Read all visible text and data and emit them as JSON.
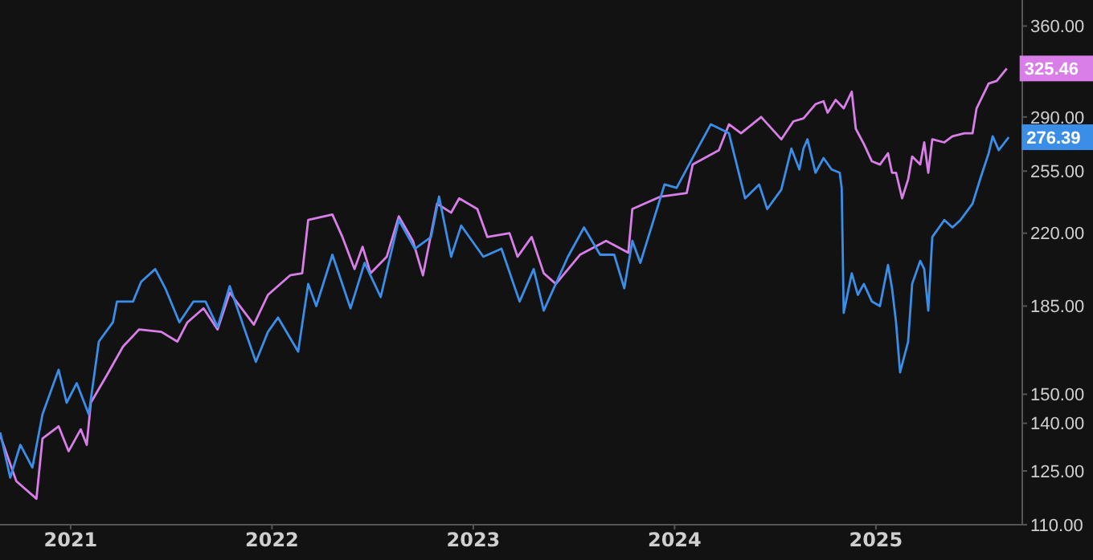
{
  "chart_data": {
    "type": "line",
    "log": true,
    "marker": "none",
    "xlim": [
      2020.649,
      2025.727
    ],
    "xticks": [
      2021,
      2022,
      2023,
      2024,
      2025
    ],
    "ylim": [
      110,
      383
    ],
    "yticks": [
      {
        "value": 110,
        "label": "110.00"
      },
      {
        "value": 125,
        "label": "125.00"
      },
      {
        "value": 140,
        "label": "140.00"
      },
      {
        "value": 150,
        "label": "150.00"
      },
      {
        "value": 185,
        "label": "185.00"
      },
      {
        "value": 220,
        "label": "220.00"
      },
      {
        "value": 255,
        "label": "255.00"
      },
      {
        "value": 290,
        "label": "290.00"
      },
      {
        "value": 360,
        "label": "360.00"
      }
    ],
    "series": [
      {
        "color": "#d97ee8",
        "x": [
          2020.65,
          2020.73,
          2020.83,
          2020.86,
          2020.94,
          2020.99,
          2021.05,
          2021.08,
          2021.1,
          2021.18,
          2021.26,
          2021.34,
          2021.45,
          2021.53,
          2021.58,
          2021.66,
          2021.73,
          2021.79,
          2021.91,
          2021.98,
          2022.09,
          2022.15,
          2022.18,
          2022.3,
          2022.35,
          2022.41,
          2022.45,
          2022.49,
          2022.57,
          2022.63,
          2022.7,
          2022.75,
          2022.82,
          2022.89,
          2022.93,
          2023.02,
          2023.07,
          2023.18,
          2023.22,
          2023.29,
          2023.35,
          2023.41,
          2023.53,
          2023.66,
          2023.77,
          2023.79,
          2023.93,
          2024.06,
          2024.09,
          2024.22,
          2024.27,
          2024.33,
          2024.43,
          2024.53,
          2024.59,
          2024.64,
          2024.7,
          2024.74,
          2024.76,
          2024.8,
          2024.84,
          2024.88,
          2024.9,
          2024.94,
          2024.98,
          2025.02,
          2025.06,
          2025.08,
          2025.1,
          2025.13,
          2025.16,
          2025.18,
          2025.22,
          2025.24,
          2025.26,
          2025.28,
          2025.34,
          2025.38,
          2025.44,
          2025.48,
          2025.5,
          2025.56,
          2025.6,
          2025.65
        ],
        "values": [
          136,
          122,
          117,
          135,
          139,
          131,
          138,
          133,
          147,
          157,
          168,
          175,
          174,
          170,
          178,
          184,
          175,
          191,
          177,
          190,
          199,
          200,
          227,
          230,
          218,
          202,
          213,
          200,
          208,
          229,
          216,
          199,
          236,
          231,
          239,
          233,
          218,
          220,
          208,
          218,
          200,
          195,
          209,
          216,
          210,
          233,
          240,
          242,
          259,
          268,
          285,
          279,
          290,
          275,
          287,
          289,
          299,
          301,
          293,
          302,
          296,
          308,
          282,
          272,
          261,
          259,
          266,
          254,
          254,
          239,
          250,
          264,
          259,
          273,
          254,
          275,
          273,
          277,
          279,
          279,
          296,
          314,
          316,
          325.46
        ]
      },
      {
        "color": "#3a8ee8",
        "x": [
          2020.65,
          2020.7,
          2020.75,
          2020.81,
          2020.86,
          2020.94,
          2020.98,
          2021.03,
          2021.09,
          2021.14,
          2021.21,
          2021.23,
          2021.31,
          2021.35,
          2021.42,
          2021.47,
          2021.54,
          2021.61,
          2021.67,
          2021.73,
          2021.79,
          2021.86,
          2021.92,
          2021.98,
          2022.03,
          2022.13,
          2022.18,
          2022.22,
          2022.3,
          2022.39,
          2022.46,
          2022.54,
          2022.63,
          2022.71,
          2022.79,
          2022.83,
          2022.89,
          2022.94,
          2023.05,
          2023.14,
          2023.23,
          2023.3,
          2023.35,
          2023.47,
          2023.55,
          2023.63,
          2023.7,
          2023.75,
          2023.79,
          2023.83,
          2023.95,
          2024.01,
          2024.11,
          2024.18,
          2024.27,
          2024.35,
          2024.42,
          2024.46,
          2024.53,
          2024.58,
          2024.62,
          2024.64,
          2024.66,
          2024.7,
          2024.74,
          2024.78,
          2024.82,
          2024.83,
          2024.84,
          2024.88,
          2024.91,
          2024.94,
          2024.98,
          2025.02,
          2025.06,
          2025.08,
          2025.1,
          2025.12,
          2025.16,
          2025.18,
          2025.22,
          2025.24,
          2025.26,
          2025.28,
          2025.34,
          2025.38,
          2025.42,
          2025.48,
          2025.52,
          2025.56,
          2025.58,
          2025.61,
          2025.66
        ],
        "values": [
          137,
          123,
          133,
          126,
          143,
          159,
          147,
          154,
          143,
          170,
          178,
          187,
          187,
          196,
          202,
          193,
          178,
          187,
          187,
          176,
          194,
          176,
          162,
          174,
          180,
          166,
          195,
          185,
          209,
          184,
          205,
          189,
          227,
          212,
          218,
          240,
          208,
          224,
          208,
          212,
          187,
          202,
          183,
          208,
          223,
          209,
          209,
          193,
          216,
          205,
          247,
          245,
          268,
          285,
          279,
          239,
          247,
          233,
          244,
          269,
          256,
          269,
          275,
          254,
          263,
          256,
          254,
          245,
          182,
          200,
          190,
          195,
          187,
          185,
          204,
          193,
          178,
          158,
          170,
          195,
          206,
          202,
          183,
          218,
          227,
          223,
          227,
          236,
          251,
          266,
          277,
          268,
          276.39
        ]
      }
    ],
    "annotations": [
      {
        "text": "325.46",
        "x": 2025.65,
        "y": 325.46
      },
      {
        "text": "276.39",
        "x": 2025.66,
        "y": 276.39
      }
    ]
  }
}
